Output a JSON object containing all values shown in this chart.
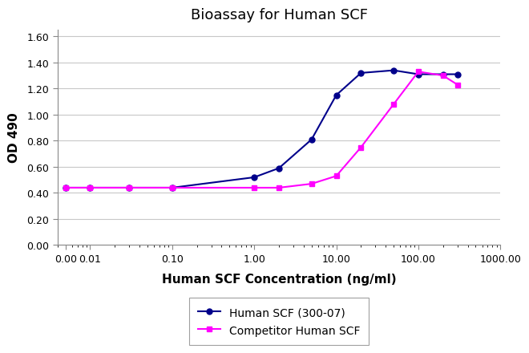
{
  "title": "Bioassay for Human SCF",
  "xlabel": "Human SCF Concentration (ng/ml)",
  "ylabel": "OD 490",
  "series": [
    {
      "label": "Human SCF (300-07)",
      "color": "#00008B",
      "marker": "o",
      "markersize": 5,
      "linewidth": 1.5,
      "x": [
        0.005,
        0.01,
        0.03,
        0.1,
        1.0,
        2.0,
        5.0,
        10.0,
        20.0,
        50.0,
        100.0,
        200.0,
        300.0
      ],
      "y": [
        0.44,
        0.44,
        0.44,
        0.44,
        0.52,
        0.59,
        0.81,
        1.15,
        1.32,
        1.34,
        1.31,
        1.31,
        1.31
      ]
    },
    {
      "label": "Competitor Human SCF",
      "color": "#FF00FF",
      "marker": "s",
      "markersize": 5,
      "linewidth": 1.5,
      "x": [
        0.005,
        0.01,
        0.03,
        0.1,
        1.0,
        2.0,
        5.0,
        10.0,
        20.0,
        50.0,
        100.0,
        200.0,
        300.0
      ],
      "y": [
        0.44,
        0.44,
        0.44,
        0.44,
        0.44,
        0.44,
        0.47,
        0.53,
        0.75,
        1.08,
        1.33,
        1.3,
        1.23
      ]
    }
  ],
  "xlim_log": [
    0.004,
    1000
  ],
  "ylim": [
    0.0,
    1.65
  ],
  "yticks": [
    0.0,
    0.2,
    0.4,
    0.6,
    0.8,
    1.0,
    1.2,
    1.4,
    1.6
  ],
  "xtick_labels": [
    "0.00",
    "0.01",
    "0.10",
    "1.00",
    "10.00",
    "100.00",
    "1000.00"
  ],
  "xtick_positions": [
    0.005,
    0.01,
    0.1,
    1.0,
    10.0,
    100.0,
    1000.0
  ],
  "background_color": "#ffffff",
  "grid_color": "#c8c8c8",
  "title_fontsize": 13,
  "label_fontsize": 11,
  "tick_fontsize": 9,
  "legend_fontsize": 10,
  "fig_width": 6.5,
  "fig_height": 4.79
}
